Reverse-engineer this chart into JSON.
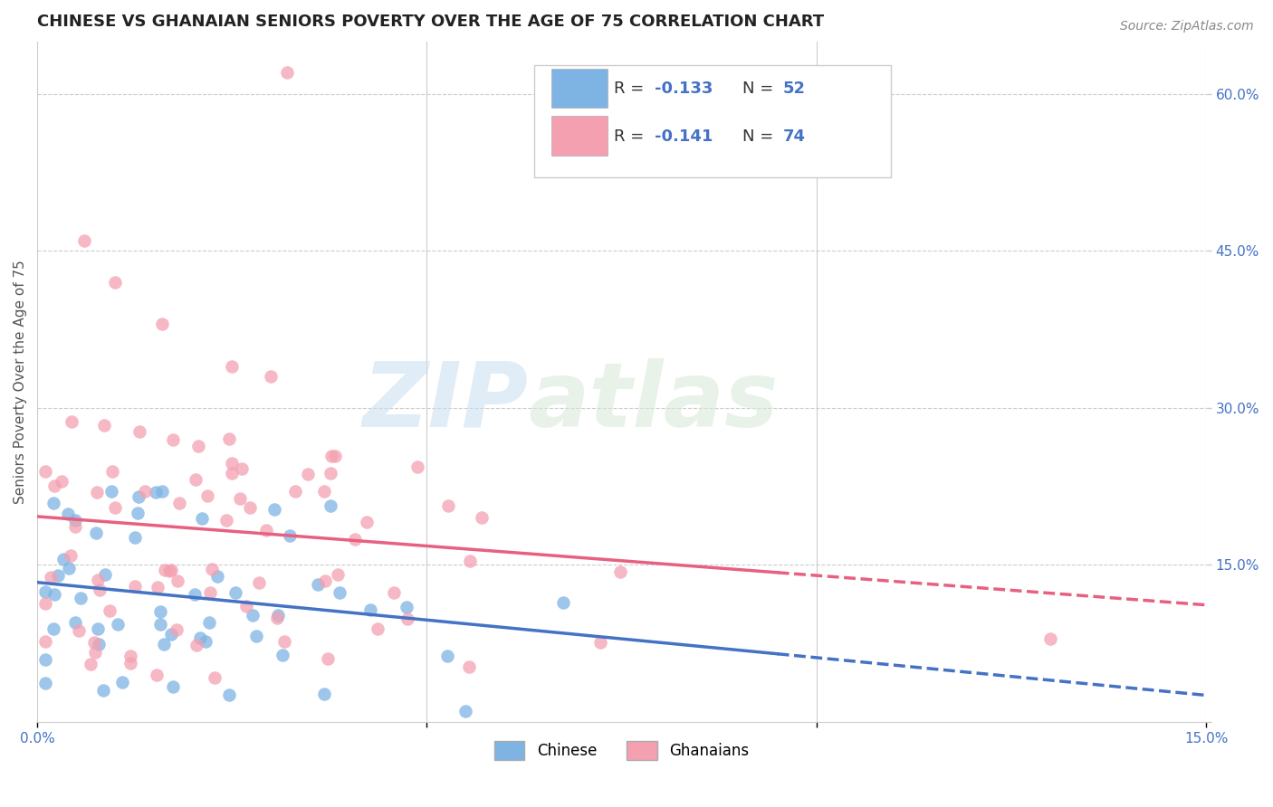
{
  "title": "CHINESE VS GHANAIAN SENIORS POVERTY OVER THE AGE OF 75 CORRELATION CHART",
  "source": "Source: ZipAtlas.com",
  "ylabel": "Seniors Poverty Over the Age of 75",
  "xlim": [
    0.0,
    0.15
  ],
  "ylim": [
    0.0,
    0.65
  ],
  "chinese_color": "#7EB4E3",
  "ghanaian_color": "#F4A0B0",
  "chinese_line_color": "#4472C4",
  "ghanaian_line_color": "#E86080",
  "background_color": "#FFFFFF",
  "tick_color": "#4472C4",
  "grid_color": "#CCCCCC",
  "title_fontsize": 13,
  "axis_label_fontsize": 11,
  "tick_fontsize": 11,
  "legend_fontsize": 14,
  "source_fontsize": 10,
  "watermark_zip_color": "#C8DFF0",
  "watermark_atlas_color": "#D8E8D8"
}
